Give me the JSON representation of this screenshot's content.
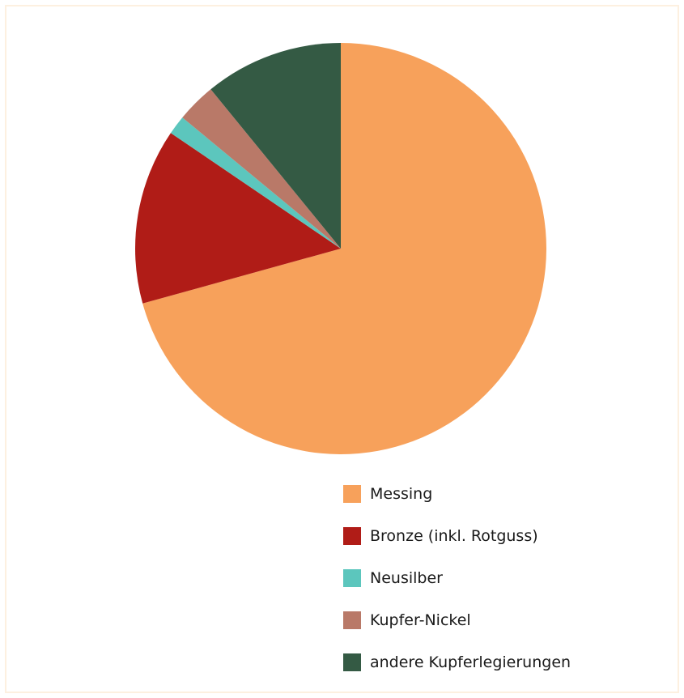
{
  "chart_data": {
    "type": "pie",
    "title": "",
    "start_angle_deg": 0,
    "direction": "clockwise",
    "slices": [
      {
        "label": "Messing",
        "value": 70.7,
        "color": "#f7a15b"
      },
      {
        "label": "Bronze (inkl. Rotguss)",
        "value": 13.8,
        "color": "#b01c17"
      },
      {
        "label": "Neusilber",
        "value": 1.5,
        "color": "#5cc6bd"
      },
      {
        "label": "Kupfer-Nickel",
        "value": 3.1,
        "color": "#b97968"
      },
      {
        "label": "andere Kupferlegierungen",
        "value": 10.9,
        "color": "#345a44"
      }
    ],
    "legend_position": "bottom-right"
  }
}
